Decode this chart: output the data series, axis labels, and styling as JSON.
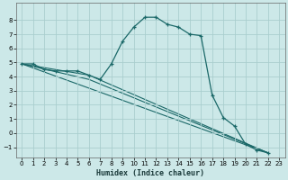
{
  "xlabel": "Humidex (Indice chaleur)",
  "background_color": "#cce8e8",
  "grid_color": "#aacece",
  "line_color": "#1a6868",
  "xlim": [
    -0.5,
    23.5
  ],
  "ylim": [
    -1.7,
    9.2
  ],
  "xticks": [
    0,
    1,
    2,
    3,
    4,
    5,
    6,
    7,
    8,
    9,
    10,
    11,
    12,
    13,
    14,
    15,
    16,
    17,
    18,
    19,
    20,
    21,
    22,
    23
  ],
  "yticks": [
    -1,
    0,
    1,
    2,
    3,
    4,
    5,
    6,
    7,
    8
  ],
  "curve_x": [
    0,
    1,
    2,
    3,
    4,
    5,
    6,
    7,
    8,
    9,
    10,
    11,
    12,
    13,
    14,
    15,
    16,
    17,
    18,
    19,
    20,
    21,
    22
  ],
  "curve_y": [
    4.9,
    4.9,
    4.5,
    4.4,
    4.4,
    4.4,
    4.1,
    3.8,
    4.9,
    6.5,
    7.5,
    8.2,
    8.2,
    7.7,
    7.5,
    7.0,
    6.9,
    2.7,
    1.1,
    0.5,
    -0.8,
    -1.2,
    -1.4
  ],
  "line1_x": [
    0,
    22
  ],
  "line1_y": [
    4.9,
    -1.4
  ],
  "line2_x": [
    0,
    6,
    22
  ],
  "line2_y": [
    4.9,
    4.1,
    -1.4
  ],
  "line3_x": [
    0,
    6,
    22
  ],
  "line3_y": [
    4.9,
    3.8,
    -1.4
  ]
}
